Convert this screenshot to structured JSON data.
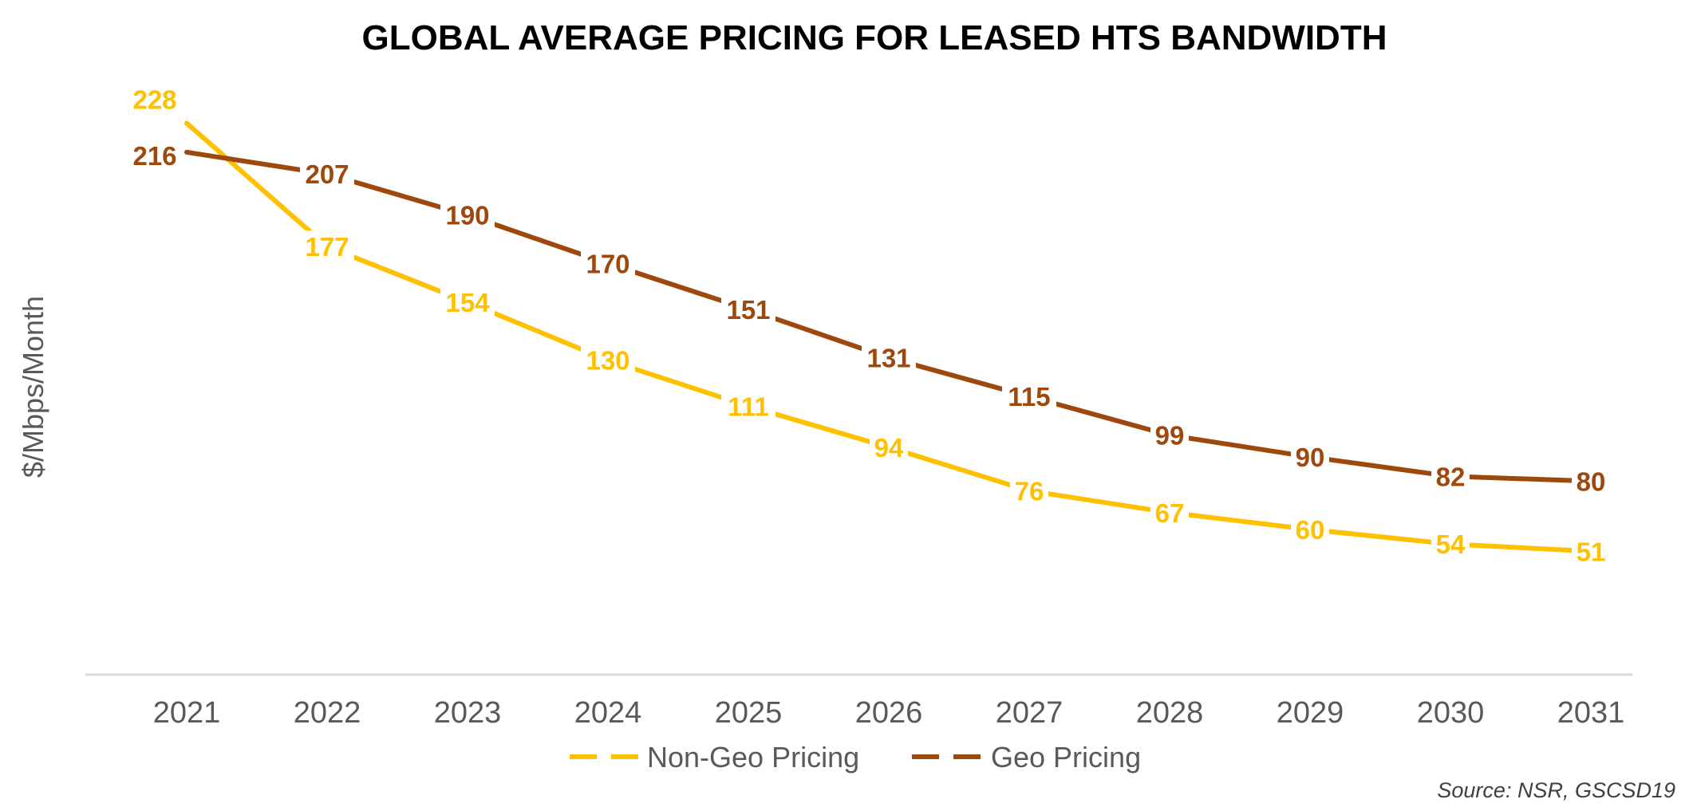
{
  "chart_data": {
    "type": "line",
    "title": "GLOBAL AVERAGE PRICING FOR LEASED HTS BANDWIDTH",
    "xlabel": "",
    "ylabel": "$/Mbps/Month",
    "categories": [
      "2021",
      "2022",
      "2023",
      "2024",
      "2025",
      "2026",
      "2027",
      "2028",
      "2029",
      "2030",
      "2031"
    ],
    "series": [
      {
        "name": "Non-Geo Pricing",
        "color": "#FFC000",
        "values": [
          228,
          177,
          154,
          130,
          111,
          94,
          76,
          67,
          60,
          54,
          51
        ]
      },
      {
        "name": "Geo Pricing",
        "color": "#9E480E",
        "values": [
          216,
          207,
          190,
          170,
          151,
          131,
          115,
          99,
          90,
          82,
          80
        ]
      }
    ],
    "ylim": [
      0,
      250
    ],
    "grid": false,
    "legend_position": "bottom",
    "data_labels": true,
    "source": "Source: NSR, GSCSD19"
  }
}
